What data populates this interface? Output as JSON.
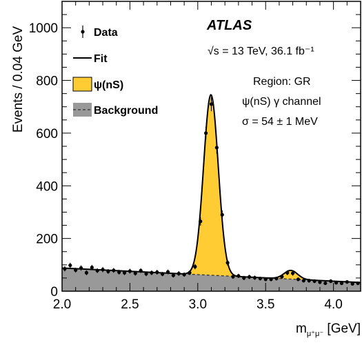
{
  "chart_data": {
    "type": "line",
    "ylabel": "Events / 0.04 GeV",
    "xlabel_main": "m",
    "xlabel_sub": "μ⁺μ⁻",
    "xlabel_unit": " [GeV]",
    "xlim": [
      2.0,
      4.2
    ],
    "ylim": [
      0,
      1100
    ],
    "x_ticks": [
      2.0,
      2.5,
      3.0,
      3.5,
      4.0
    ],
    "x_tick_labels": [
      "2.0",
      "2.5",
      "3.0",
      "3.5",
      "4.0"
    ],
    "y_ticks": [
      0,
      200,
      400,
      600,
      800,
      1000
    ],
    "y_tick_labels": [
      "0",
      "200",
      "400",
      "600",
      "800",
      "1000"
    ],
    "experiment": "ATLAS",
    "energy_text": "√s = 13 TeV, 36.1 fb⁻¹",
    "annotations": [
      "Region: GR",
      "ψ(nS) γ channel",
      "σ = 54 ± 1 MeV"
    ],
    "legend": [
      {
        "label": "Data",
        "kind": "points"
      },
      {
        "label": "Fit",
        "kind": "line"
      },
      {
        "label": "ψ(nS)",
        "kind": "fill",
        "color": "#ffcc33"
      },
      {
        "label": "Background",
        "kind": "fill-dashed",
        "color": "#999999"
      }
    ],
    "colors": {
      "signal": "#ffcc33",
      "background": "#999999",
      "data": "#000000"
    },
    "background_model": {
      "x": [
        2.0,
        4.2
      ],
      "y": [
        88,
        33
      ]
    },
    "fit_peaks": [
      {
        "mean": 3.097,
        "sigma": 0.054,
        "amplitude": 685
      },
      {
        "mean": 3.686,
        "sigma": 0.05,
        "amplitude": 33
      }
    ],
    "series": [
      {
        "name": "Data",
        "x": [
          2.02,
          2.06,
          2.1,
          2.14,
          2.18,
          2.22,
          2.26,
          2.3,
          2.34,
          2.38,
          2.42,
          2.46,
          2.5,
          2.54,
          2.58,
          2.62,
          2.66,
          2.7,
          2.74,
          2.78,
          2.82,
          2.86,
          2.9,
          2.94,
          2.98,
          3.02,
          3.06,
          3.1,
          3.14,
          3.18,
          3.22,
          3.26,
          3.3,
          3.34,
          3.38,
          3.42,
          3.46,
          3.5,
          3.54,
          3.58,
          3.62,
          3.66,
          3.7,
          3.74,
          3.78,
          3.82,
          3.86,
          3.9,
          3.94,
          3.98,
          4.02,
          4.06,
          4.1,
          4.14,
          4.18
        ],
        "y": [
          85,
          98,
          80,
          88,
          70,
          90,
          78,
          82,
          75,
          79,
          72,
          70,
          76,
          68,
          78,
          66,
          70,
          72,
          65,
          73,
          60,
          67,
          63,
          70,
          93,
          265,
          600,
          710,
          545,
          290,
          108,
          55,
          58,
          50,
          54,
          51,
          48,
          45,
          45,
          48,
          55,
          70,
          68,
          45,
          40,
          40,
          38,
          34,
          30,
          38,
          32,
          30,
          35,
          28,
          30
        ],
        "err": [
          10,
          10,
          9,
          10,
          9,
          10,
          9,
          10,
          9,
          9,
          9,
          9,
          9,
          9,
          9,
          9,
          9,
          9,
          8,
          9,
          8,
          9,
          8,
          9,
          10,
          16,
          24,
          27,
          23,
          17,
          11,
          8,
          8,
          8,
          8,
          8,
          7,
          7,
          7,
          7,
          8,
          9,
          9,
          7,
          7,
          7,
          7,
          6,
          6,
          7,
          6,
          6,
          6,
          6,
          6
        ]
      }
    ]
  }
}
